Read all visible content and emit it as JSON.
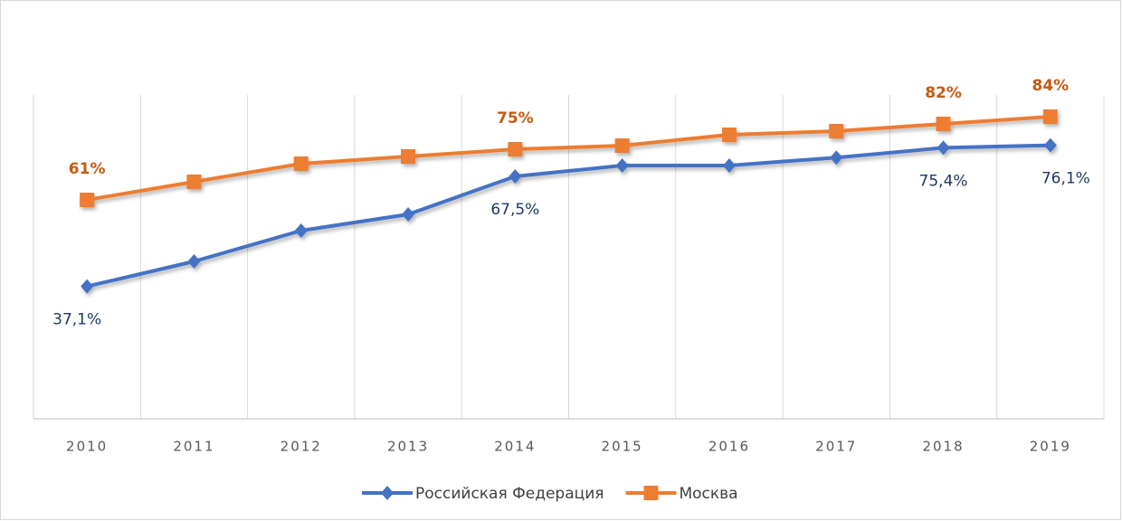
{
  "chart_data": {
    "type": "line",
    "categories": [
      "2010",
      "2011",
      "2012",
      "2013",
      "2014",
      "2015",
      "2016",
      "2017",
      "2018",
      "2019"
    ],
    "series": [
      {
        "name": "Российская Федерация",
        "color": "#4472c4",
        "marker": "diamond",
        "values": [
          37.1,
          44,
          52.5,
          57,
          67.5,
          70.5,
          70.5,
          72.7,
          75.4,
          76.1
        ],
        "value_labels": [
          "37,1%",
          null,
          null,
          null,
          "67,5%",
          null,
          null,
          null,
          "75,4%",
          "76,1%"
        ],
        "label_color": "#1f3864"
      },
      {
        "name": "Москва",
        "color": "#ed7d31",
        "marker": "square",
        "values": [
          61,
          66,
          71,
          73,
          75,
          76,
          79,
          80,
          82,
          84
        ],
        "value_labels": [
          "61%",
          null,
          null,
          null,
          "75%",
          null,
          null,
          null,
          "82%",
          "84%"
        ],
        "label_color": "#c55a11"
      }
    ],
    "ylim": [
      0,
      90
    ],
    "legend": "bottom"
  }
}
